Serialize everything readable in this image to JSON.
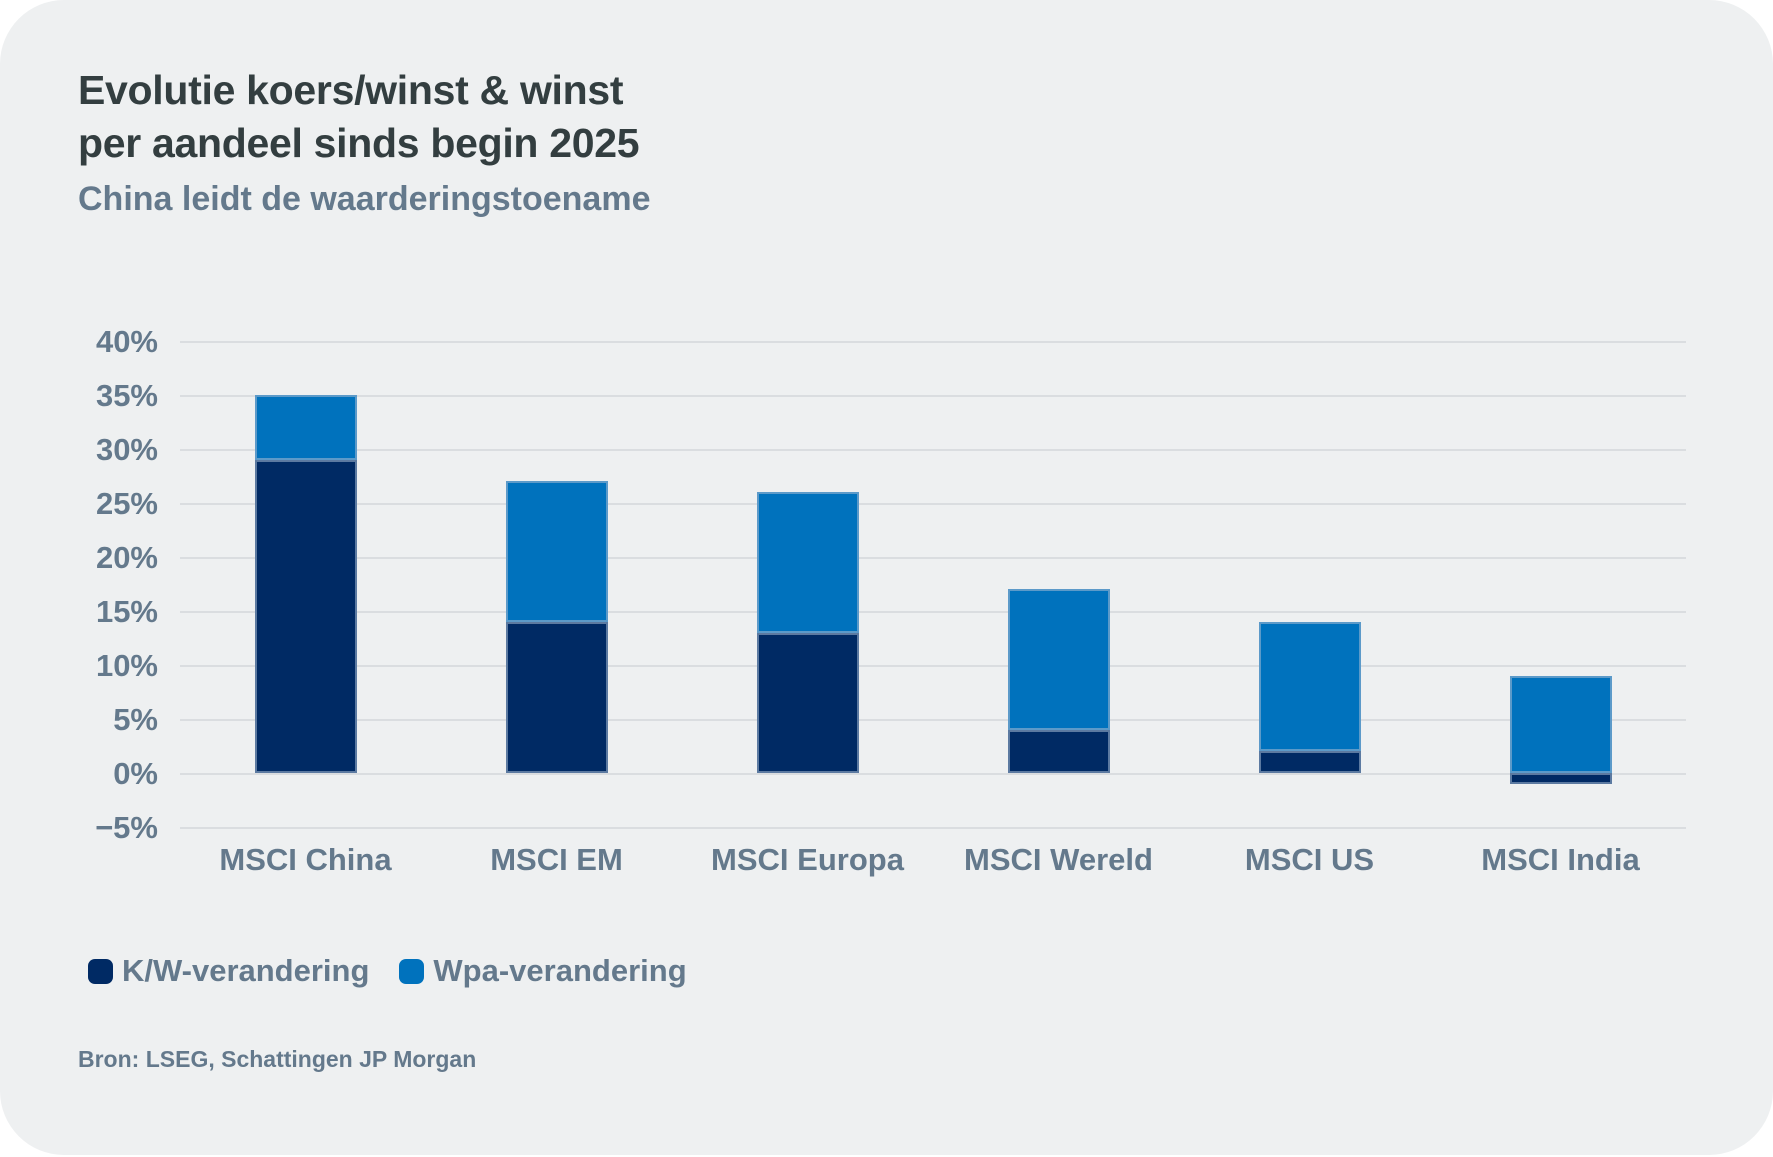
{
  "header": {
    "title_lines": [
      "Evolutie koers/winst & winst",
      "per aandeel sinds begin 2025"
    ],
    "subtitle": "China leidt de waarderingstoename"
  },
  "chart_data": {
    "type": "bar",
    "stacked": true,
    "title": "Evolutie koers/winst & winst per aandeel sinds begin 2025",
    "subtitle": "China leidt de waarderingstoename",
    "categories": [
      "MSCI China",
      "MSCI EM",
      "MSCI Europa",
      "MSCI Wereld",
      "MSCI US",
      "MSCI India"
    ],
    "series": [
      {
        "name": "K/W-verandering",
        "color": "#002a64",
        "values": [
          29,
          14,
          13,
          4,
          2,
          -1
        ]
      },
      {
        "name": "Wpa-verandering",
        "color": "#0072bd",
        "values": [
          6,
          13,
          13,
          13,
          12,
          9
        ]
      }
    ],
    "stack_tops": [
      35,
      27,
      26,
      17,
      14,
      9
    ],
    "xlabel": "",
    "ylabel": "",
    "ylim": [
      -5,
      40
    ],
    "ytick_step": 5,
    "ytick_labels": [
      "40%",
      "35%",
      "30%",
      "25%",
      "20%",
      "15%",
      "10%",
      "5%",
      "0%",
      "−5%"
    ],
    "grid": true,
    "legend_position": "bottom-left"
  },
  "colors": {
    "card_background": "#eef0f1",
    "page_background": "#ffffff",
    "title_text": "#333e40",
    "secondary_text": "#64798c",
    "gridline": "#dadde0",
    "series_kw": "#002a64",
    "series_wpa": "#0072bd"
  },
  "footer": {
    "source": "Bron: LSEG, Schattingen JP Morgan"
  }
}
